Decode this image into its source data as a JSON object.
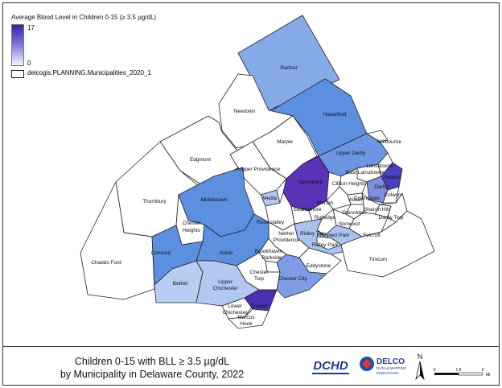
{
  "legend": {
    "title": "Average Blood Level in Children 0-15 (≥ 3.5 µg/dL)",
    "max_label": "17",
    "min_label": "0",
    "layer_label": "delcogis.PLANNING.Municipalities_2020_1",
    "ramp_colors": [
      "#3b1fa8",
      "#7f7be0",
      "#f3f3ff"
    ]
  },
  "map": {
    "municipalities": [
      {
        "name": "Radnor",
        "color": "#86a9e8"
      },
      {
        "name": "Haverford",
        "color": "#5d8fe0"
      },
      {
        "name": "Newtown",
        "color": "#ffffff"
      },
      {
        "name": "Marple",
        "color": "#ffffff"
      },
      {
        "name": "Edgmont",
        "color": "#ffffff"
      },
      {
        "name": "Upper Providence",
        "color": "#ffffff"
      },
      {
        "name": "Thornbury",
        "color": "#ffffff"
      },
      {
        "name": "Middletown",
        "color": "#5d8fe0"
      },
      {
        "name": "Springfield",
        "color": "#5a34b8"
      },
      {
        "name": "Upper Darby",
        "color": "#6c95e3"
      },
      {
        "name": "Millbourne",
        "color": "#ffffff"
      },
      {
        "name": "Lansdowne",
        "color": "#ffffff"
      },
      {
        "name": "Yeadon",
        "color": "#4a3fbf"
      },
      {
        "name": "Darby",
        "color": "#7f8fe0"
      },
      {
        "name": "Colwyn",
        "color": "#ffffff"
      },
      {
        "name": "Collingdale",
        "color": "#ffffff"
      },
      {
        "name": "Sharon Hill",
        "color": "#ffffff"
      },
      {
        "name": "Darby Twp",
        "color": "#ffffff"
      },
      {
        "name": "Clifton Heights",
        "color": "#ffffff"
      },
      {
        "name": "Aldan",
        "color": "#ffffff"
      },
      {
        "name": "East Lansdowne",
        "color": "#ffffff"
      },
      {
        "name": "Media",
        "color": "#b3c8f0"
      },
      {
        "name": "Swarthmore",
        "color": "#ffffff"
      },
      {
        "name": "Morton",
        "color": "#ffffff"
      },
      {
        "name": "Rutledge",
        "color": "#ffffff"
      },
      {
        "name": "Glenolden",
        "color": "#ffffff"
      },
      {
        "name": "Norwood",
        "color": "#ffffff"
      },
      {
        "name": "Prospect Park",
        "color": "#ffffff"
      },
      {
        "name": "Folcroft",
        "color": "#ffffff"
      },
      {
        "name": "Ridley Twp",
        "color": "#aac3ee"
      },
      {
        "name": "Ridley Park",
        "color": "#ffffff"
      },
      {
        "name": "Tinicum",
        "color": "#ffffff"
      },
      {
        "name": "Rose Valley",
        "color": "#ffffff"
      },
      {
        "name": "Nether Providence",
        "color": "#ffffff"
      },
      {
        "name": "Chester Heights",
        "color": "#ffffff"
      },
      {
        "name": "Chadds Ford",
        "color": "#ffffff"
      },
      {
        "name": "Concord",
        "color": "#5d8fe0"
      },
      {
        "name": "Aston",
        "color": "#5d8fe0"
      },
      {
        "name": "Brookhaven",
        "color": "#ffffff"
      },
      {
        "name": "Parkside",
        "color": "#ffffff"
      },
      {
        "name": "Eddystone",
        "color": "#ffffff"
      },
      {
        "name": "Chester City",
        "color": "#7f9be6"
      },
      {
        "name": "Chester Twp",
        "color": "#ffffff"
      },
      {
        "name": "Bethel",
        "color": "#b9ccf1"
      },
      {
        "name": "Upper Chichester",
        "color": "#b3c8f0"
      },
      {
        "name": "Lower Chichester",
        "color": "#ffffff"
      },
      {
        "name": "Trainer",
        "color": "#4a2fb3"
      },
      {
        "name": "Marcus Hook",
        "color": "#ffffff"
      }
    ]
  },
  "title": {
    "line1": "Children 0-15 with BLL ≥ 3.5 µg/dL",
    "line2": "by Municipality in Delaware County, 2022"
  },
  "logos": {
    "dchd": "DCHD",
    "delco_name": "DELCO",
    "delco_sub1": "DATA & MAPPING",
    "delco_sub2": "INNOVATION"
  },
  "north_arrow": {
    "label": "N"
  },
  "scale": {
    "tick0": "0",
    "tick1": "1.5",
    "tick2": "3",
    "unit": "Mi"
  }
}
